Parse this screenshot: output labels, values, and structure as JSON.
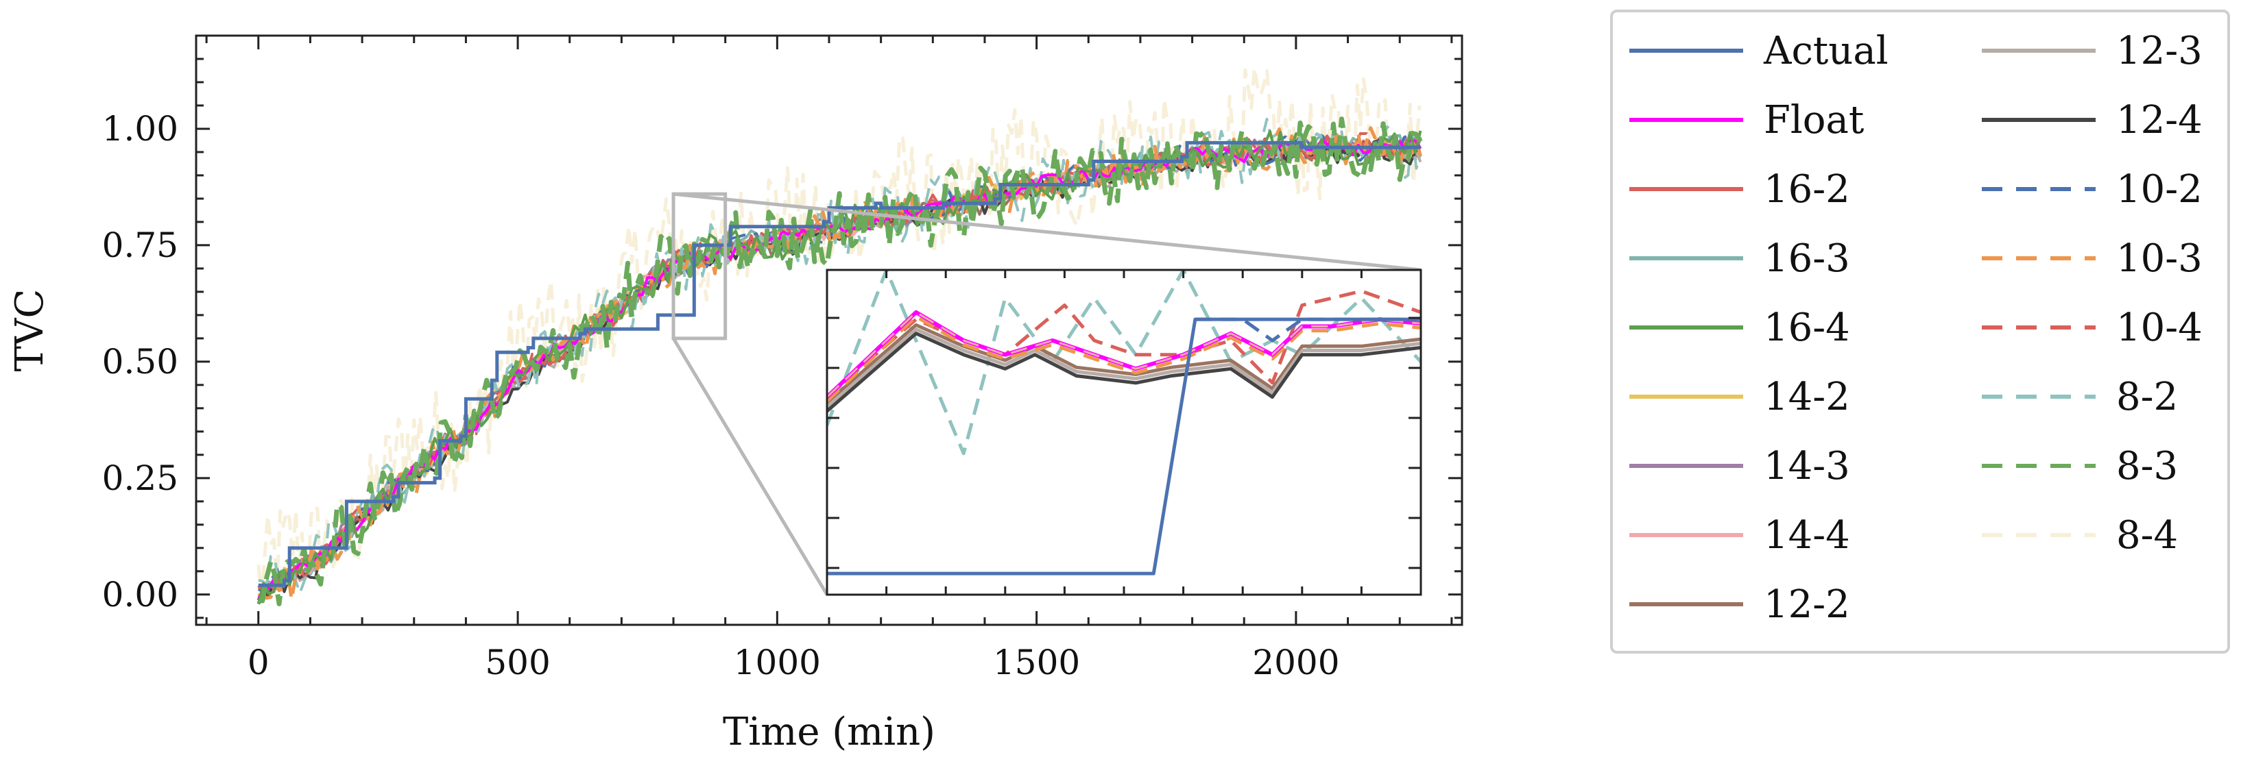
{
  "chart_data": {
    "type": "line",
    "xlabel": "Time (min)",
    "ylabel": "TVC",
    "xlim": [
      -120,
      2320
    ],
    "ylim": [
      -0.065,
      1.2
    ],
    "x_ticks": [
      0,
      500,
      1000,
      1500,
      2000
    ],
    "x_tick_labels": [
      "0",
      "500",
      "1000",
      "1500",
      "2000"
    ],
    "y_ticks": [
      0.0,
      0.25,
      0.5,
      0.75,
      1.0
    ],
    "y_tick_labels": [
      "0.00",
      "0.25",
      "0.50",
      "0.75",
      "1.00"
    ],
    "legend_position": "right, outside plot",
    "series": [
      {
        "name": "Actual",
        "color": "#4C72B0",
        "dash": "solid"
      },
      {
        "name": "Float",
        "color": "#FF00FF",
        "dash": "solid"
      },
      {
        "name": "16-2",
        "color": "#D9605A",
        "dash": "solid"
      },
      {
        "name": "16-3",
        "color": "#7FB5AE",
        "dash": "solid"
      },
      {
        "name": "16-4",
        "color": "#5E9E4E",
        "dash": "solid"
      },
      {
        "name": "14-2",
        "color": "#E8C45E",
        "dash": "solid"
      },
      {
        "name": "14-3",
        "color": "#9E7FA6",
        "dash": "solid"
      },
      {
        "name": "14-4",
        "color": "#F0A8AE",
        "dash": "solid"
      },
      {
        "name": "12-2",
        "color": "#9A7460",
        "dash": "solid"
      },
      {
        "name": "12-3",
        "color": "#B8ACA8",
        "dash": "solid"
      },
      {
        "name": "12-4",
        "color": "#444444",
        "dash": "solid"
      },
      {
        "name": "10-2",
        "color": "#4C72B0",
        "dash": "dashed"
      },
      {
        "name": "10-3",
        "color": "#EE964B",
        "dash": "dashed"
      },
      {
        "name": "10-4",
        "color": "#D9605A",
        "dash": "dashed"
      },
      {
        "name": "8-2",
        "color": "#8FC3BF",
        "dash": "dashed"
      },
      {
        "name": "8-3",
        "color": "#6AAA5A",
        "dash": "dashed"
      },
      {
        "name": "8-4",
        "color": "#F7EFD8",
        "dash": "dashed"
      }
    ],
    "actual_steps": [
      [
        0,
        0.02
      ],
      [
        50,
        0.03
      ],
      [
        60,
        0.1
      ],
      [
        160,
        0.1
      ],
      [
        170,
        0.2
      ],
      [
        260,
        0.21
      ],
      [
        270,
        0.24
      ],
      [
        340,
        0.25
      ],
      [
        350,
        0.33
      ],
      [
        390,
        0.34
      ],
      [
        400,
        0.42
      ],
      [
        450,
        0.46
      ],
      [
        460,
        0.52
      ],
      [
        520,
        0.53
      ],
      [
        530,
        0.55
      ],
      [
        620,
        0.56
      ],
      [
        630,
        0.57
      ],
      [
        760,
        0.57
      ],
      [
        770,
        0.6
      ],
      [
        830,
        0.6
      ],
      [
        840,
        0.75
      ],
      [
        900,
        0.75
      ],
      [
        910,
        0.79
      ],
      [
        1090,
        0.8
      ],
      [
        1100,
        0.83
      ],
      [
        1190,
        0.84
      ],
      [
        1200,
        0.83
      ],
      [
        1310,
        0.83
      ],
      [
        1320,
        0.84
      ],
      [
        1420,
        0.85
      ],
      [
        1430,
        0.88
      ],
      [
        1600,
        0.89
      ],
      [
        1610,
        0.93
      ],
      [
        1780,
        0.94
      ],
      [
        1790,
        0.97
      ],
      [
        2000,
        0.97
      ],
      [
        2010,
        0.96
      ],
      [
        2240,
        0.96
      ]
    ],
    "model_base": [
      [
        0,
        0.0
      ],
      [
        100,
        0.06
      ],
      [
        200,
        0.17
      ],
      [
        300,
        0.26
      ],
      [
        400,
        0.35
      ],
      [
        500,
        0.47
      ],
      [
        600,
        0.54
      ],
      [
        700,
        0.62
      ],
      [
        800,
        0.71
      ],
      [
        900,
        0.74
      ],
      [
        1000,
        0.76
      ],
      [
        1100,
        0.78
      ],
      [
        1200,
        0.81
      ],
      [
        1300,
        0.83
      ],
      [
        1400,
        0.85
      ],
      [
        1500,
        0.88
      ],
      [
        1600,
        0.9
      ],
      [
        1700,
        0.92
      ],
      [
        1800,
        0.94
      ],
      [
        1900,
        0.95
      ],
      [
        2000,
        0.96
      ],
      [
        2100,
        0.96
      ],
      [
        2240,
        0.96
      ]
    ],
    "inset": {
      "source_window": {
        "x": [
          800,
          900
        ],
        "y": [
          0.55,
          0.86
        ]
      },
      "actual": [
        [
          800,
          0.575
        ],
        [
          855,
          0.575
        ],
        [
          862,
          0.755
        ],
        [
          900,
          0.755
        ]
      ],
      "float": [
        [
          800,
          0.7
        ],
        [
          815,
          0.76
        ],
        [
          823,
          0.74
        ],
        [
          830,
          0.73
        ],
        [
          838,
          0.74
        ],
        [
          845,
          0.73
        ],
        [
          852,
          0.72
        ],
        [
          860,
          0.73
        ],
        [
          868,
          0.745
        ],
        [
          875,
          0.73
        ],
        [
          880,
          0.75
        ],
        [
          885,
          0.75
        ],
        [
          893,
          0.755
        ],
        [
          900,
          0.752
        ]
      ],
      "dark": [
        [
          800,
          0.69
        ],
        [
          815,
          0.745
        ],
        [
          823,
          0.73
        ],
        [
          830,
          0.72
        ],
        [
          835,
          0.73
        ],
        [
          842,
          0.715
        ],
        [
          852,
          0.71
        ],
        [
          858,
          0.715
        ],
        [
          868,
          0.72
        ],
        [
          875,
          0.7
        ],
        [
          880,
          0.73
        ],
        [
          890,
          0.73
        ],
        [
          900,
          0.735
        ]
      ],
      "red_dash": [
        [
          800,
          0.7
        ],
        [
          815,
          0.755
        ],
        [
          823,
          0.74
        ],
        [
          830,
          0.73
        ],
        [
          840,
          0.765
        ],
        [
          845,
          0.74
        ],
        [
          852,
          0.73
        ],
        [
          860,
          0.73
        ],
        [
          868,
          0.74
        ],
        [
          875,
          0.71
        ],
        [
          880,
          0.765
        ],
        [
          890,
          0.775
        ],
        [
          900,
          0.76
        ]
      ],
      "teal_dash": [
        [
          800,
          0.68
        ],
        [
          810,
          0.79
        ],
        [
          823,
          0.66
        ],
        [
          830,
          0.77
        ],
        [
          838,
          0.725
        ],
        [
          845,
          0.77
        ],
        [
          852,
          0.73
        ],
        [
          860,
          0.79
        ],
        [
          868,
          0.725
        ],
        [
          875,
          0.74
        ],
        [
          880,
          0.73
        ],
        [
          890,
          0.77
        ],
        [
          900,
          0.725
        ]
      ],
      "blue_dash": [
        [
          862,
          0.755
        ],
        [
          870,
          0.755
        ],
        [
          875,
          0.74
        ],
        [
          880,
          0.755
        ],
        [
          900,
          0.755
        ]
      ]
    }
  }
}
